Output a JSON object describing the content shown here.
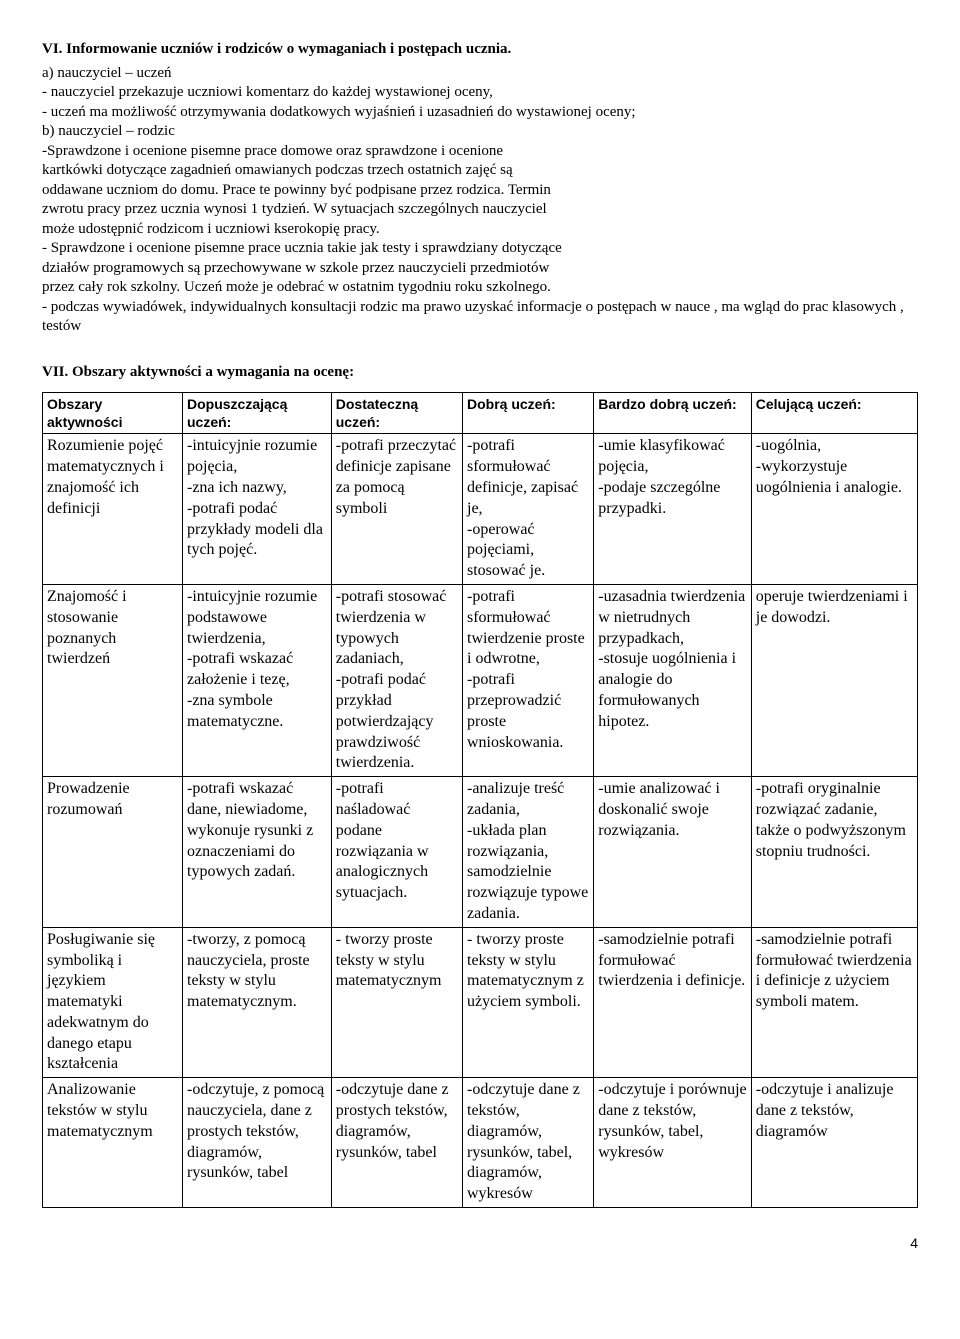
{
  "heading6": "VI. Informowanie uczniów i rodziców o wymaganiach i postępach ucznia.",
  "para6": "a) nauczyciel – uczeń\n- nauczyciel przekazuje uczniowi komentarz do każdej wystawionej oceny,\n- uczeń ma możliwość otrzymywania dodatkowych wyjaśnień i uzasadnień do wystawionej oceny;\nb) nauczyciel – rodzic\n-Sprawdzone i ocenione pisemne prace domowe oraz sprawdzone i ocenione\nkartkówki dotyczące zagadnień omawianych podczas trzech ostatnich zajęć są\noddawane uczniom do domu. Prace te powinny być podpisane przez rodzica. Termin\nzwrotu pracy przez ucznia wynosi 1 tydzień. W sytuacjach szczególnych nauczyciel\nmoże udostępnić rodzicom i uczniowi kserokopię pracy.\n- Sprawdzone i ocenione pisemne prace ucznia takie jak testy i sprawdziany dotyczące\ndziałów programowych są przechowywane w szkole przez nauczycieli przedmiotów\nprzez cały rok szkolny. Uczeń może je odebrać w ostatnim tygodniu roku szkolnego.\n- podczas wywiadówek, indywidualnych konsultacji rodzic ma prawo uzyskać informacje o postępach w nauce , ma wgląd do prac klasowych , testów",
  "heading7": "VII. Obszary aktywności a wymagania na ocenę:",
  "table": {
    "headers": [
      "Obszary aktywności",
      "Dopuszczającą uczeń:",
      "Dostateczną uczeń:",
      "Dobrą uczeń:",
      "Bardzo dobrą uczeń:",
      "Celującą uczeń:"
    ],
    "rows": [
      [
        "Rozumienie pojęć matematycznych i znajomość ich definicji",
        "-intuicyjnie rozumie pojęcia,\n-zna ich nazwy,\n-potrafi podać przykłady modeli dla tych pojęć.",
        "-potrafi przeczytać definicje zapisane za pomocą symboli",
        "-potrafi sformułować definicje, zapisać je,\n-operować pojęciami, stosować je.",
        "-umie klasyfikować pojęcia,\n-podaje szczególne przypadki.",
        "-uogólnia,\n-wykorzystuje uogólnienia i analogie."
      ],
      [
        "Znajomość i stosowanie poznanych twierdzeń",
        "-intuicyjnie rozumie podstawowe twierdzenia,\n-potrafi wskazać założenie i tezę,\n-zna symbole matematyczne.",
        "-potrafi stosować twierdzenia w typowych zadaniach,\n-potrafi podać przykład potwierdzający prawdziwość twierdzenia.",
        "-potrafi sformułować twierdzenie proste i odwrotne,\n-potrafi przeprowadzić proste wnioskowania.",
        "-uzasadnia twierdzenia w nietrudnych przypadkach,\n-stosuje uogólnienia i analogie do formułowanych hipotez.",
        "operuje twierdzeniami i je dowodzi."
      ],
      [
        "Prowadzenie rozumowań",
        "-potrafi wskazać dane, niewiadome, wykonuje rysunki z oznaczeniami do typowych zadań.",
        "-potrafi naśladować podane rozwiązania w analogicznych sytuacjach.",
        "-analizuje treść zadania,\n-układa plan rozwiązania, samodzielnie rozwiązuje typowe zadania.",
        "-umie analizować i doskonalić swoje rozwiązania.",
        "-potrafi oryginalnie rozwiązać zadanie, także o podwyższonym stopniu trudności."
      ],
      [
        "Posługiwanie się symboliką i językiem matematyki adekwatnym do danego etapu kształcenia",
        "-tworzy, z pomocą nauczyciela, proste teksty w stylu matematycznym.",
        "- tworzy proste teksty w stylu matematycznym",
        "- tworzy proste teksty w stylu matematycznym z użyciem symboli.",
        "-samodzielnie potrafi formułować twierdzenia i definicje.",
        "-samodzielnie potrafi formułować twierdzenia i definicje z użyciem symboli matem."
      ],
      [
        "Analizowanie tekstów w stylu matematycznym",
        "-odczytuje, z pomocą nauczyciela, dane z prostych tekstów, diagramów, rysunków, tabel",
        "-odczytuje dane z prostych tekstów, diagramów, rysunków, tabel",
        "-odczytuje dane z tekstów, diagramów, rysunków, tabel, diagramów, wykresów",
        "-odczytuje i porównuje dane z tekstów, rysunków, tabel, wykresów",
        "-odczytuje i analizuje dane z tekstów, diagramów"
      ]
    ]
  },
  "pageNumber": "4"
}
